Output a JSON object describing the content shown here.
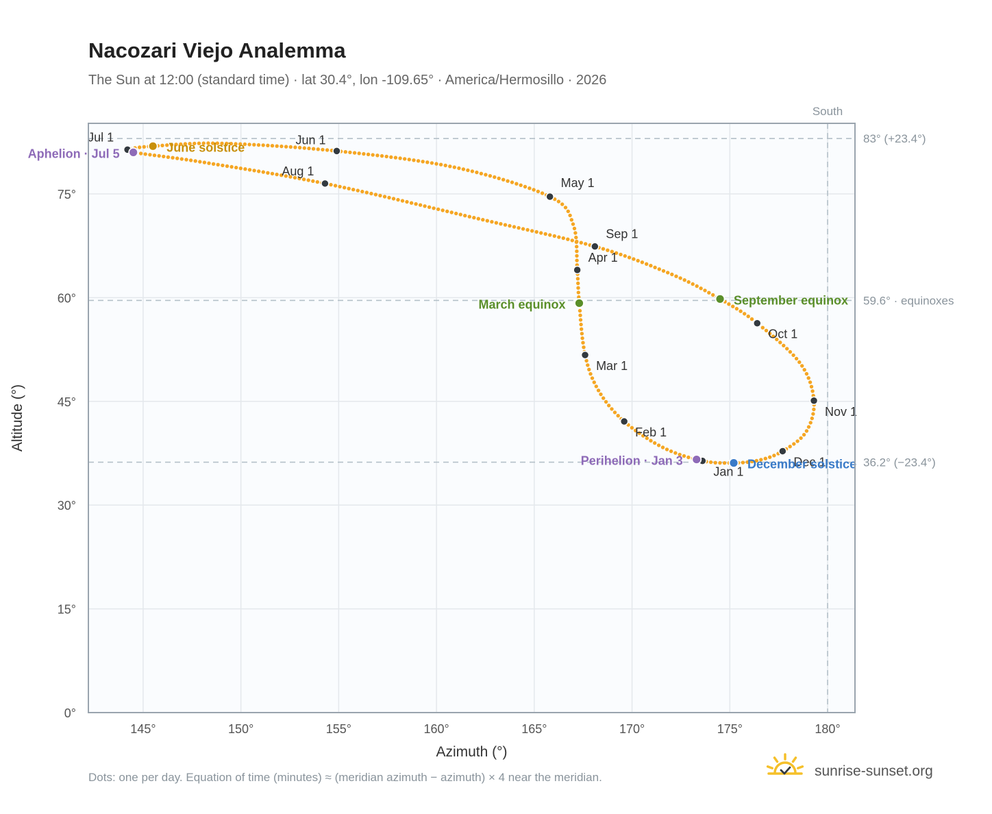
{
  "title": "Nacozari Viejo Analemma",
  "subtitle": "The Sun at 12:00 (standard time) · lat 30.4°, lon -109.65° · America/Hermosillo · 2026",
  "footnote": "Dots: one per day. Equation of time (minutes) ≈ (meridian azimuth − azimuth) × 4 near the meridian.",
  "brand": "sunrise-sunset.org",
  "colors": {
    "curve": "#f5a623",
    "month_dot": "#333a40",
    "june_solstice": "#c8900a",
    "december_solstice": "#3a7bc8",
    "equinox": "#5a8f2a",
    "aphelion_perihelion": "#8e6bb8",
    "grid": "#e4e8ec",
    "reference_line": "#b4c0c8",
    "plot_background": "#fafcfe",
    "frame": "#9aa4ae",
    "brand_sun": "#f5c02a"
  },
  "chart_data": {
    "type": "scatter",
    "xlabel": "Azimuth (°)",
    "ylabel": "Altitude (°)",
    "xlim": [
      142.2,
      181.4
    ],
    "ylim": [
      0,
      85.2
    ],
    "x_ticks": [
      {
        "value": 145,
        "label": "145°"
      },
      {
        "value": 150,
        "label": "150°"
      },
      {
        "value": 155,
        "label": "155°"
      },
      {
        "value": 160,
        "label": "160°"
      },
      {
        "value": 165,
        "label": "165°"
      },
      {
        "value": 170,
        "label": "170°"
      },
      {
        "value": 175,
        "label": "175°"
      },
      {
        "value": 180,
        "label": "180°"
      }
    ],
    "y_ticks": [
      {
        "value": 0,
        "label": "0°"
      },
      {
        "value": 15,
        "label": "15°"
      },
      {
        "value": 30,
        "label": "30°"
      },
      {
        "value": 45,
        "label": "45°"
      },
      {
        "value": 60,
        "label": "60°"
      },
      {
        "value": 75,
        "label": "75°"
      }
    ],
    "grid": true,
    "reference_lines": [
      {
        "axis": "y",
        "value": 83.0,
        "label": "83° (+23.4°)"
      },
      {
        "axis": "y",
        "value": 59.6,
        "label": "59.6° · equinoxes"
      },
      {
        "axis": "y",
        "value": 36.2,
        "label": "36.2° (−23.4°)"
      },
      {
        "axis": "x",
        "value": 180,
        "label": "South"
      }
    ],
    "month_markers": [
      {
        "label": "Jan 1",
        "azimuth": 173.6,
        "altitude": 36.4
      },
      {
        "label": "Feb 1",
        "azimuth": 169.6,
        "altitude": 42.1
      },
      {
        "label": "Mar 1",
        "azimuth": 167.6,
        "altitude": 51.7
      },
      {
        "label": "Apr 1",
        "azimuth": 167.2,
        "altitude": 64.0
      },
      {
        "label": "May 1",
        "azimuth": 165.8,
        "altitude": 74.6
      },
      {
        "label": "Jun 1",
        "azimuth": 154.9,
        "altitude": 81.2
      },
      {
        "label": "Jul 1",
        "azimuth": 144.2,
        "altitude": 81.4
      },
      {
        "label": "Aug 1",
        "azimuth": 154.3,
        "altitude": 76.5
      },
      {
        "label": "Sep 1",
        "azimuth": 168.1,
        "altitude": 67.4
      },
      {
        "label": "Oct 1",
        "azimuth": 176.4,
        "altitude": 56.3
      },
      {
        "label": "Nov 1",
        "azimuth": 179.3,
        "altitude": 45.1
      },
      {
        "label": "Dec 1",
        "azimuth": 177.7,
        "altitude": 37.8
      }
    ],
    "events": [
      {
        "label": "June solstice",
        "azimuth": 145.5,
        "altitude": 81.9,
        "color_key": "june_solstice"
      },
      {
        "label": "December solstice",
        "azimuth": 175.2,
        "altitude": 36.1,
        "color_key": "december_solstice"
      },
      {
        "label": "March equinox",
        "azimuth": 167.3,
        "altitude": 59.2,
        "color_key": "equinox"
      },
      {
        "label": "September equinox",
        "azimuth": 174.5,
        "altitude": 59.8,
        "color_key": "equinox"
      },
      {
        "label": "Aphelion · Jul 5",
        "azimuth": 144.5,
        "altitude": 81.0,
        "color_key": "aphelion_perihelion"
      },
      {
        "label": "Perihelion · Jan 3",
        "azimuth": 173.3,
        "altitude": 36.6,
        "color_key": "aphelion_perihelion"
      }
    ],
    "curve_control_points": [
      {
        "azimuth": 175.2,
        "altitude": 36.1
      },
      {
        "azimuth": 173.6,
        "altitude": 36.4
      },
      {
        "azimuth": 171.6,
        "altitude": 38.3
      },
      {
        "azimuth": 169.6,
        "altitude": 42.1
      },
      {
        "azimuth": 168.3,
        "altitude": 46.5
      },
      {
        "azimuth": 167.6,
        "altitude": 51.7
      },
      {
        "azimuth": 167.3,
        "altitude": 59.2
      },
      {
        "azimuth": 167.2,
        "altitude": 64.0
      },
      {
        "azimuth": 167.0,
        "altitude": 70.5
      },
      {
        "azimuth": 165.8,
        "altitude": 74.6
      },
      {
        "azimuth": 161.0,
        "altitude": 78.8
      },
      {
        "azimuth": 154.9,
        "altitude": 81.2
      },
      {
        "azimuth": 149.0,
        "altitude": 82.3
      },
      {
        "azimuth": 145.5,
        "altitude": 81.9
      },
      {
        "azimuth": 144.2,
        "altitude": 81.4
      },
      {
        "azimuth": 144.5,
        "altitude": 81.0
      },
      {
        "azimuth": 148.0,
        "altitude": 79.6
      },
      {
        "azimuth": 154.3,
        "altitude": 76.5
      },
      {
        "azimuth": 162.0,
        "altitude": 71.5
      },
      {
        "azimuth": 168.1,
        "altitude": 67.4
      },
      {
        "azimuth": 172.0,
        "altitude": 63.4
      },
      {
        "azimuth": 174.5,
        "altitude": 59.8
      },
      {
        "azimuth": 176.4,
        "altitude": 56.3
      },
      {
        "azimuth": 178.6,
        "altitude": 50.5
      },
      {
        "azimuth": 179.3,
        "altitude": 45.1
      },
      {
        "azimuth": 178.9,
        "altitude": 40.6
      },
      {
        "azimuth": 177.7,
        "altitude": 37.8
      },
      {
        "azimuth": 176.5,
        "altitude": 36.5
      },
      {
        "azimuth": 175.2,
        "altitude": 36.1
      }
    ]
  }
}
